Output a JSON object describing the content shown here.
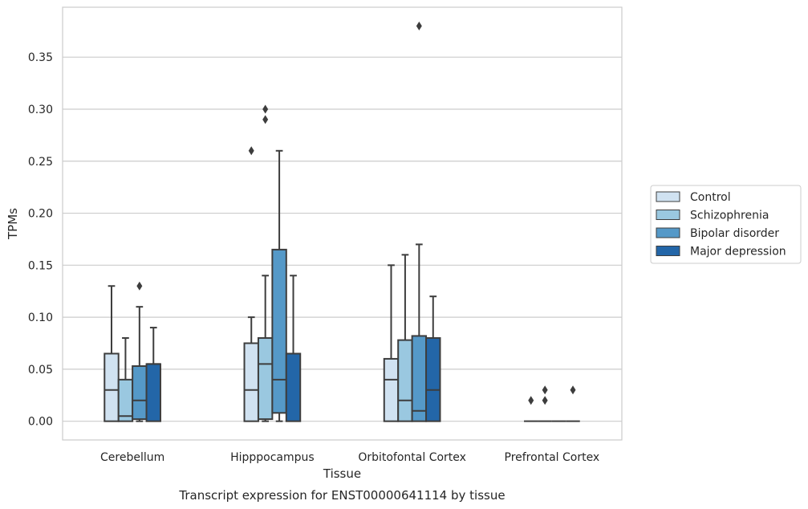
{
  "caption": "Transcript expression for ENST00000641114 by tissue",
  "chart_data": {
    "type": "boxplot",
    "title": "",
    "xlabel": "Tissue",
    "ylabel": "TPMs",
    "ylim": [
      -0.018,
      0.398
    ],
    "yticks": [
      "0.00",
      "0.05",
      "0.10",
      "0.15",
      "0.20",
      "0.25",
      "0.30",
      "0.35"
    ],
    "grid": true,
    "legend_position": "right",
    "categories": [
      "Cerebellum",
      "Hipppocampus",
      "Orbitofontal Cortex",
      "Prefrontal Cortex"
    ],
    "series": [
      {
        "name": "Control",
        "color": "#d0e2f1",
        "boxes": [
          {
            "whislo": 0,
            "q1": 0,
            "med": 0.03,
            "q3": 0.065,
            "whishi": 0.13,
            "fliers": []
          },
          {
            "whislo": 0,
            "q1": 0,
            "med": 0.03,
            "q3": 0.075,
            "whishi": 0.1,
            "fliers": [
              0.26
            ]
          },
          {
            "whislo": 0,
            "q1": 0,
            "med": 0.04,
            "q3": 0.06,
            "whishi": 0.15,
            "fliers": []
          },
          {
            "whislo": 0,
            "q1": 0,
            "med": 0,
            "q3": 0,
            "whishi": 0,
            "fliers": [
              0.02
            ]
          }
        ]
      },
      {
        "name": "Schizophrenia",
        "color": "#9ac8e0",
        "boxes": [
          {
            "whislo": 0,
            "q1": 0,
            "med": 0.005,
            "q3": 0.04,
            "whishi": 0.08,
            "fliers": []
          },
          {
            "whislo": 0,
            "q1": 0.002,
            "med": 0.055,
            "q3": 0.08,
            "whishi": 0.14,
            "fliers": [
              0.29,
              0.3
            ]
          },
          {
            "whislo": 0,
            "q1": 0,
            "med": 0.02,
            "q3": 0.078,
            "whishi": 0.16,
            "fliers": []
          },
          {
            "whislo": 0,
            "q1": 0,
            "med": 0,
            "q3": 0,
            "whishi": 0,
            "fliers": [
              0.02,
              0.03
            ]
          }
        ]
      },
      {
        "name": "Bipolar disorder",
        "color": "#5599c8",
        "boxes": [
          {
            "whislo": 0,
            "q1": 0.002,
            "med": 0.02,
            "q3": 0.053,
            "whishi": 0.11,
            "fliers": [
              0.13
            ]
          },
          {
            "whislo": 0,
            "q1": 0.008,
            "med": 0.04,
            "q3": 0.165,
            "whishi": 0.26,
            "fliers": []
          },
          {
            "whislo": 0,
            "q1": 0,
            "med": 0.01,
            "q3": 0.082,
            "whishi": 0.17,
            "fliers": [
              0.38
            ]
          },
          {
            "whislo": 0,
            "q1": 0,
            "med": 0,
            "q3": 0,
            "whishi": 0,
            "fliers": []
          }
        ]
      },
      {
        "name": "Major depression",
        "color": "#2366a8",
        "boxes": [
          {
            "whislo": 0,
            "q1": 0,
            "med": 0.055,
            "q3": 0.055,
            "whishi": 0.09,
            "fliers": []
          },
          {
            "whislo": 0,
            "q1": 0,
            "med": 0.065,
            "q3": 0.065,
            "whishi": 0.14,
            "fliers": []
          },
          {
            "whislo": 0,
            "q1": 0,
            "med": 0.03,
            "q3": 0.08,
            "whishi": 0.12,
            "fliers": []
          },
          {
            "whislo": 0,
            "q1": 0,
            "med": 0,
            "q3": 0,
            "whishi": 0,
            "fliers": [
              0.03
            ]
          }
        ]
      }
    ]
  }
}
